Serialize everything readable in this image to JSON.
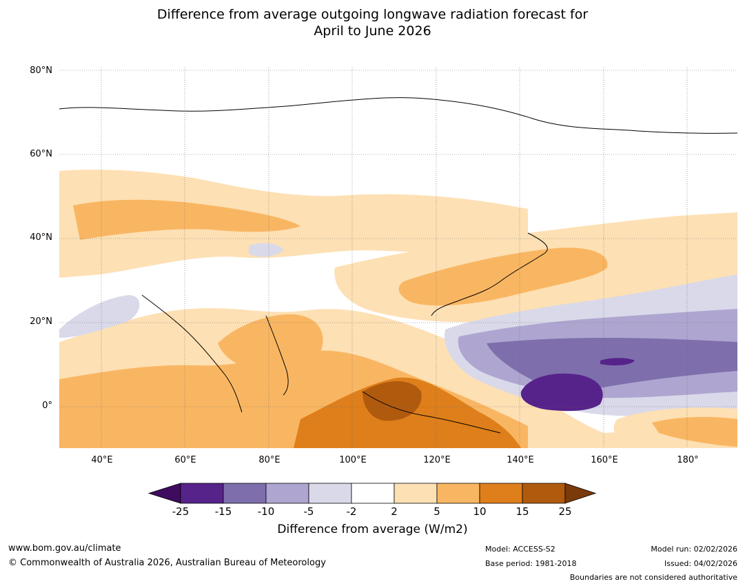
{
  "title_line1": "Difference from average outgoing longwave radiation forecast for",
  "title_line2": "April to June 2026",
  "map": {
    "lat_labels": [
      "80°N",
      "60°N",
      "40°N",
      "20°N",
      "0°"
    ],
    "lon_labels": [
      "40°E",
      "60°E",
      "80°E",
      "100°E",
      "120°E",
      "140°E",
      "160°E",
      "180°"
    ]
  },
  "colorbar": {
    "title": "Difference from average (W/m2)",
    "tick_labels": [
      "-25",
      "-15",
      "-10",
      "-5",
      "-2",
      "2",
      "5",
      "10",
      "15",
      "25"
    ],
    "colors": [
      "#3f0b5e",
      "#56238a",
      "#7e6fac",
      "#aea6d0",
      "#d9d9ea",
      "#ffffff",
      "#fde0b4",
      "#f9b662",
      "#de7f1b",
      "#b05a0e",
      "#7a3a0a"
    ]
  },
  "footer": {
    "website": "www.bom.gov.au/climate",
    "copyright": "© Commonwealth of Australia 2026, Australian Bureau of Meteorology",
    "model": "Model: ACCESS-S2",
    "base_period": "Base period: 1981-2018",
    "model_run": "Model run: 02/02/2026",
    "issued": "Issued: 04/02/2026",
    "disclaimer": "Boundaries are not considered authoritative"
  }
}
